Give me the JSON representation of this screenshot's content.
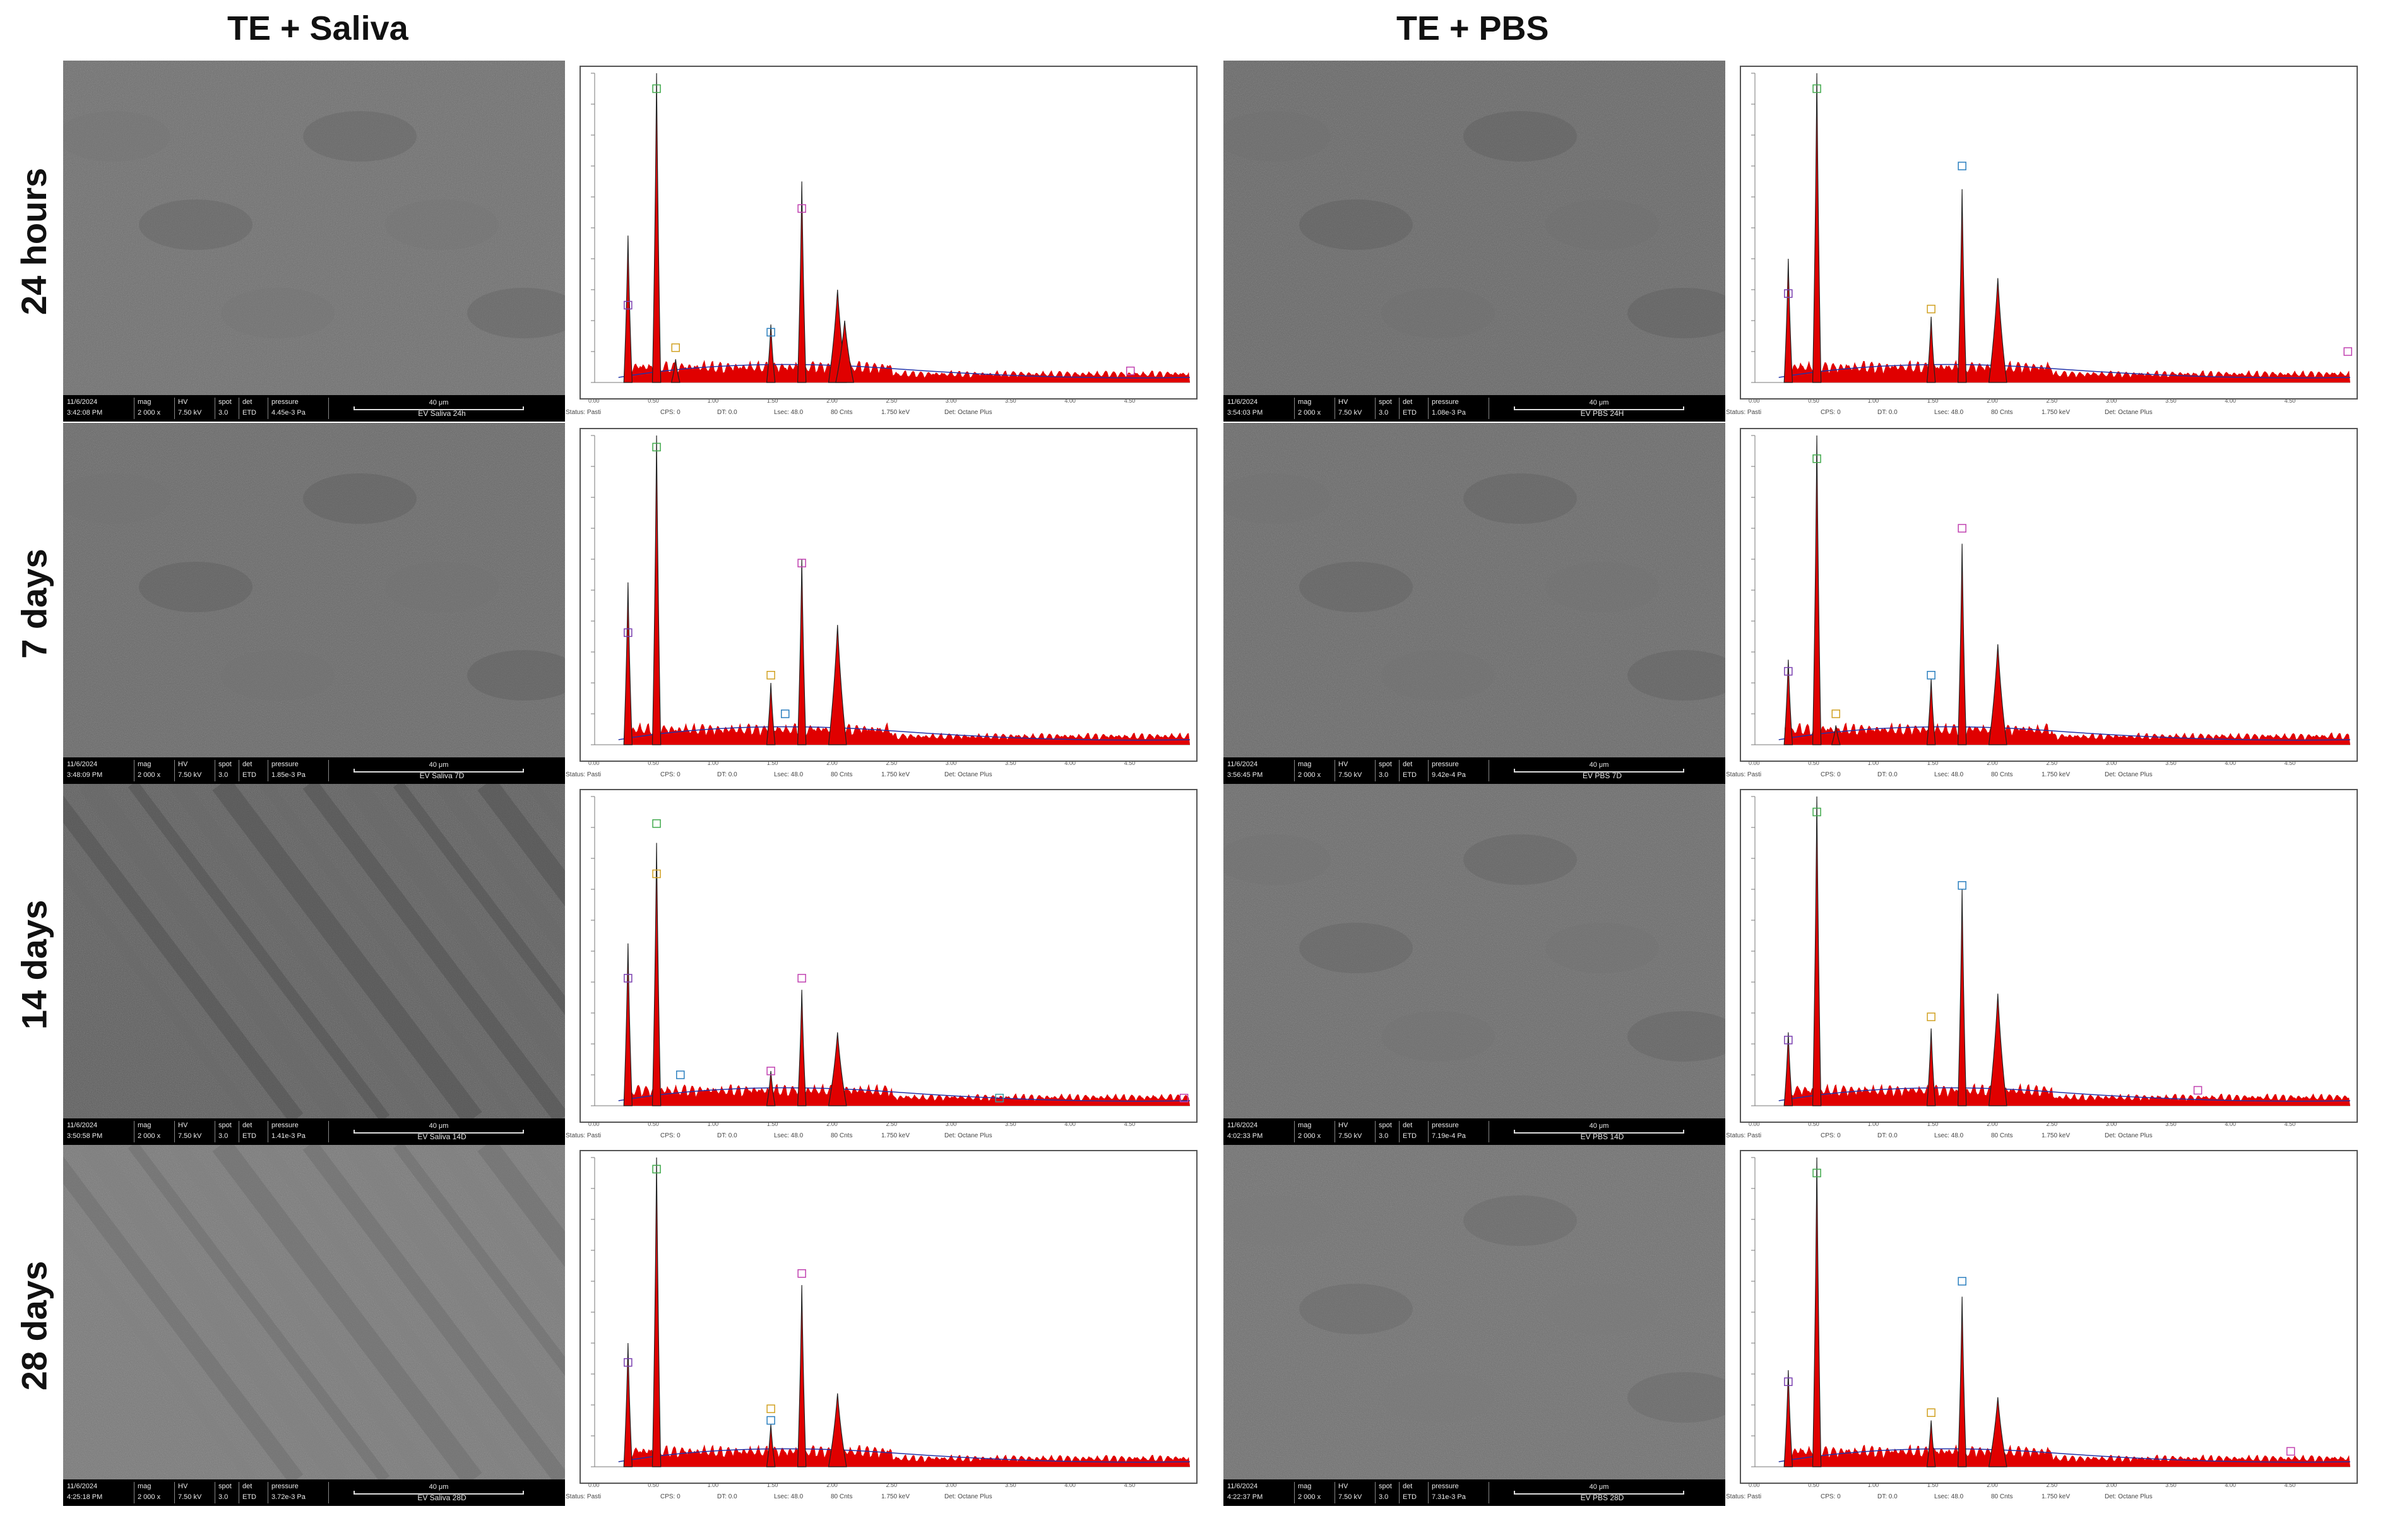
{
  "columns": [
    "TE + Saliva",
    "TE + PBS"
  ],
  "rows": [
    "24 hours",
    "7 days",
    "14 days",
    "28 days"
  ],
  "sem_labels": {
    "mag": "mag",
    "hv": "HV",
    "spot": "spot",
    "det": "det",
    "pressure": "pressure"
  },
  "eds_footer": {
    "status": "Status: Pasti",
    "cps": "CPS: 0",
    "dt": "DT: 0.0",
    "lsec": "Lsec: 48.0",
    "cnts": "80 Cnts",
    "kev": "1.750 keV",
    "det": "Det: Octane Plus"
  },
  "panels": [
    {
      "date": "11/6/2024",
      "time": "3:42:08 PM",
      "mag": "2 000 x",
      "hv": "7.50 kV",
      "spot": "3.0",
      "det": "ETD",
      "pressure": "4.45e-3 Pa",
      "scale": "40 μm",
      "name": "EV Saliva 24h"
    },
    {
      "date": "11/6/2024",
      "time": "3:54:03 PM",
      "mag": "2 000 x",
      "hv": "7.50 kV",
      "spot": "3.0",
      "det": "ETD",
      "pressure": "1.08e-3 Pa",
      "scale": "40 μm",
      "name": "EV PBS 24H"
    },
    {
      "date": "11/6/2024",
      "time": "3:48:09 PM",
      "mag": "2 000 x",
      "hv": "7.50 kV",
      "spot": "3.0",
      "det": "ETD",
      "pressure": "1.85e-3 Pa",
      "scale": "40 μm",
      "name": "EV Saliva 7D"
    },
    {
      "date": "11/6/2024",
      "time": "3:56:45 PM",
      "mag": "2 000 x",
      "hv": "7.50 kV",
      "spot": "3.0",
      "det": "ETD",
      "pressure": "9.42e-4 Pa",
      "scale": "40 μm",
      "name": "EV PBS 7D"
    },
    {
      "date": "11/6/2024",
      "time": "3:50:58 PM",
      "mag": "2 000 x",
      "hv": "7.50 kV",
      "spot": "3.0",
      "det": "ETD",
      "pressure": "1.41e-3 Pa",
      "scale": "40 μm",
      "name": "EV Saliva 14D"
    },
    {
      "date": "11/6/2024",
      "time": "4:02:33 PM",
      "mag": "2 000 x",
      "hv": "7.50 kV",
      "spot": "3.0",
      "det": "ETD",
      "pressure": "7.19e-4 Pa",
      "scale": "40 μm",
      "name": "EV PBS 14D"
    },
    {
      "date": "11/6/2024",
      "time": "4:25:18 PM",
      "mag": "2 000 x",
      "hv": "7.50 kV",
      "spot": "3.0",
      "det": "ETD",
      "pressure": "3.72e-3 Pa",
      "scale": "40 μm",
      "name": "EV Saliva 28D"
    },
    {
      "date": "11/6/2024",
      "time": "4:22:37 PM",
      "mag": "2 000 x",
      "hv": "7.50 kV",
      "spot": "3.0",
      "det": "ETD",
      "pressure": "7.31e-3 Pa",
      "scale": "40 μm",
      "name": "EV PBS 28D"
    }
  ],
  "chart_data": {
    "type": "line",
    "description_units": "EDS spectra: x in keV, y in counts",
    "x_ticks": [
      "0.00",
      "0.50",
      "1.00",
      "1.50",
      "2.00",
      "2.50",
      "3.00",
      "3.50",
      "4.00",
      "4.50"
    ],
    "xlim": [
      0,
      5.0
    ],
    "spectra": [
      {
        "panel": "TE + Saliva / 24 hours",
        "ymax": 800,
        "peaks": [
          {
            "x": 0.28,
            "y": 380
          },
          {
            "x": 0.52,
            "y": 800
          },
          {
            "x": 0.68,
            "y": 60
          },
          {
            "x": 1.48,
            "y": 150
          },
          {
            "x": 1.74,
            "y": 520
          },
          {
            "x": 2.04,
            "y": 240
          },
          {
            "x": 2.1,
            "y": 160
          }
        ],
        "markers": [
          {
            "x": 0.28,
            "y": 200
          },
          {
            "x": 0.52,
            "y": 760
          },
          {
            "x": 0.68,
            "y": 90
          },
          {
            "x": 1.48,
            "y": 130
          },
          {
            "x": 1.74,
            "y": 450
          },
          {
            "x": 4.5,
            "y": 30
          }
        ]
      },
      {
        "panel": "TE + PBS / 24 hours",
        "ymax": 800,
        "peaks": [
          {
            "x": 0.28,
            "y": 320
          },
          {
            "x": 0.52,
            "y": 800
          },
          {
            "x": 1.48,
            "y": 170
          },
          {
            "x": 1.74,
            "y": 500
          },
          {
            "x": 2.04,
            "y": 270
          }
        ],
        "markers": [
          {
            "x": 0.28,
            "y": 230
          },
          {
            "x": 0.52,
            "y": 760
          },
          {
            "x": 1.48,
            "y": 190
          },
          {
            "x": 1.74,
            "y": 560
          },
          {
            "x": 4.98,
            "y": 80
          }
        ]
      },
      {
        "panel": "TE + Saliva / 7 days",
        "ymax": 800,
        "peaks": [
          {
            "x": 0.28,
            "y": 420
          },
          {
            "x": 0.52,
            "y": 800
          },
          {
            "x": 1.48,
            "y": 160
          },
          {
            "x": 1.74,
            "y": 480
          },
          {
            "x": 2.04,
            "y": 310
          }
        ],
        "markers": [
          {
            "x": 0.28,
            "y": 290
          },
          {
            "x": 0.52,
            "y": 770
          },
          {
            "x": 1.48,
            "y": 180
          },
          {
            "x": 1.6,
            "y": 80
          },
          {
            "x": 1.74,
            "y": 470
          }
        ]
      },
      {
        "panel": "TE + PBS / 7 days",
        "ymax": 800,
        "peaks": [
          {
            "x": 0.28,
            "y": 220
          },
          {
            "x": 0.52,
            "y": 800
          },
          {
            "x": 0.68,
            "y": 50
          },
          {
            "x": 1.48,
            "y": 170
          },
          {
            "x": 1.74,
            "y": 520
          },
          {
            "x": 2.04,
            "y": 260
          }
        ],
        "markers": [
          {
            "x": 0.28,
            "y": 190
          },
          {
            "x": 0.52,
            "y": 740
          },
          {
            "x": 0.68,
            "y": 80
          },
          {
            "x": 1.48,
            "y": 180
          },
          {
            "x": 1.74,
            "y": 560
          }
        ]
      },
      {
        "panel": "TE + Saliva / 14 days",
        "ymax": 800,
        "peaks": [
          {
            "x": 0.28,
            "y": 420
          },
          {
            "x": 0.52,
            "y": 680
          },
          {
            "x": 1.48,
            "y": 90
          },
          {
            "x": 1.74,
            "y": 300
          },
          {
            "x": 2.04,
            "y": 190
          }
        ],
        "markers": [
          {
            "x": 0.28,
            "y": 330
          },
          {
            "x": 0.52,
            "y": 730
          },
          {
            "x": 0.52,
            "y": 600
          },
          {
            "x": 0.72,
            "y": 80
          },
          {
            "x": 1.48,
            "y": 90
          },
          {
            "x": 1.74,
            "y": 330
          },
          {
            "x": 3.4,
            "y": 20
          },
          {
            "x": 4.95,
            "y": 20
          }
        ]
      },
      {
        "panel": "TE + PBS / 14 days",
        "ymax": 800,
        "peaks": [
          {
            "x": 0.28,
            "y": 190
          },
          {
            "x": 0.52,
            "y": 800
          },
          {
            "x": 1.48,
            "y": 200
          },
          {
            "x": 1.74,
            "y": 560
          },
          {
            "x": 2.04,
            "y": 290
          }
        ],
        "markers": [
          {
            "x": 0.28,
            "y": 170
          },
          {
            "x": 0.52,
            "y": 760
          },
          {
            "x": 1.48,
            "y": 230
          },
          {
            "x": 1.74,
            "y": 570
          },
          {
            "x": 3.72,
            "y": 40
          }
        ]
      },
      {
        "panel": "TE + Saliva / 28 days",
        "ymax": 800,
        "peaks": [
          {
            "x": 0.28,
            "y": 320
          },
          {
            "x": 0.52,
            "y": 800
          },
          {
            "x": 1.48,
            "y": 110
          },
          {
            "x": 1.74,
            "y": 470
          },
          {
            "x": 2.04,
            "y": 190
          }
        ],
        "markers": [
          {
            "x": 0.28,
            "y": 270
          },
          {
            "x": 0.52,
            "y": 770
          },
          {
            "x": 1.48,
            "y": 150
          },
          {
            "x": 1.48,
            "y": 120
          },
          {
            "x": 1.74,
            "y": 500
          }
        ]
      },
      {
        "panel": "TE + PBS / 28 days",
        "ymax": 800,
        "peaks": [
          {
            "x": 0.28,
            "y": 250
          },
          {
            "x": 0.52,
            "y": 800
          },
          {
            "x": 1.48,
            "y": 120
          },
          {
            "x": 1.74,
            "y": 440
          },
          {
            "x": 2.04,
            "y": 180
          }
        ],
        "markers": [
          {
            "x": 0.28,
            "y": 220
          },
          {
            "x": 0.52,
            "y": 760
          },
          {
            "x": 1.48,
            "y": 140
          },
          {
            "x": 1.74,
            "y": 480
          },
          {
            "x": 4.5,
            "y": 40
          }
        ]
      }
    ]
  }
}
